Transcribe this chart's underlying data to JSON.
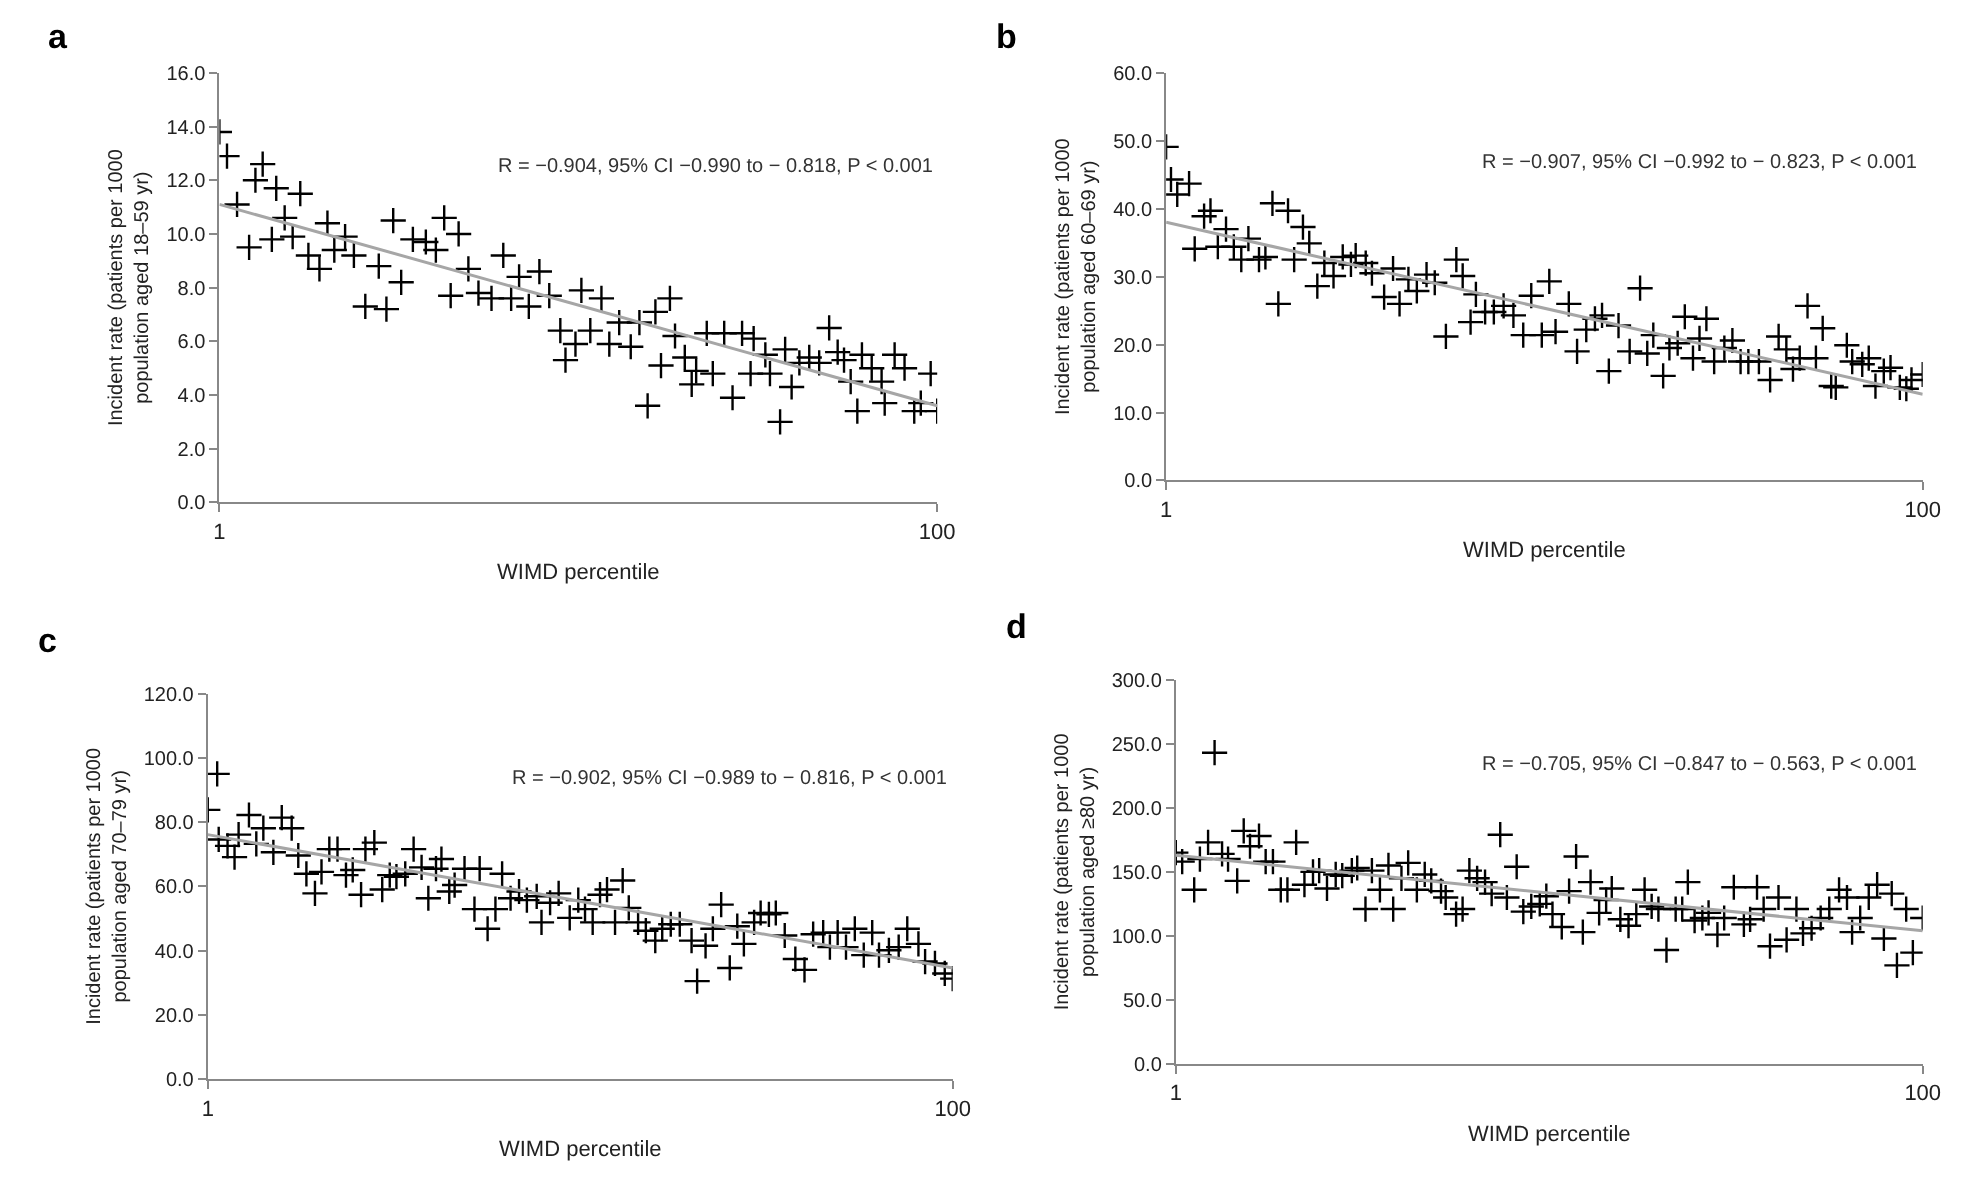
{
  "chart_data": [
    {
      "type": "scatter",
      "title": "a",
      "xlabel": "WIMD percentile",
      "ylabel": "Incident rate (patients per 1000\npopulation aged 18–59 yr)",
      "log": "x",
      "xlim": [
        1,
        100
      ],
      "xticks": [
        1,
        100
      ],
      "ylim": [
        0,
        16
      ],
      "yticks": [
        {
          "value": 0,
          "label": "0.0"
        },
        {
          "value": 2,
          "label": "2.0"
        },
        {
          "value": 4,
          "label": "4.0"
        },
        {
          "value": 6,
          "label": "6.0"
        },
        {
          "value": 8,
          "label": "8.0"
        },
        {
          "value": 10,
          "label": "10.0"
        },
        {
          "value": 12,
          "label": "12.0"
        },
        {
          "value": 14,
          "label": "14.0"
        },
        {
          "value": 16,
          "label": "16.0"
        }
      ],
      "annotations": [
        "R = −0.904, 95% CI −0.990 to − 0.818, P < 0.001"
      ],
      "series": [
        {
          "color": "#000000",
          "marker": "cross",
          "x": [
            1.0,
            1.05,
            1.12,
            1.21,
            1.26,
            1.32,
            1.4,
            1.44,
            1.52,
            1.6,
            1.68,
            1.77,
            1.9,
            2.0,
            2.09,
            2.24,
            2.37,
            2.55,
            2.78,
            2.92,
            3.05,
            3.21,
            3.46,
            3.76,
            4.01,
            4.23,
            4.41,
            4.64,
            4.94,
            5.27,
            5.73,
            6.18,
            6.5,
            6.84,
            7.28,
            7.79,
            8.3,
            8.91,
            9.21,
            9.82,
            10.2,
            10.8,
            11.6,
            12.2,
            13.0,
            14.0,
            14.8,
            15.6,
            16.4,
            17.0,
            18.0,
            18.6,
            19.8,
            20.7,
            21.3,
            22.8,
            23.7,
            25.5,
            26.9,
            28.6,
            30.2,
            30.8,
            33.2,
            34.2,
            36.5,
            37.7,
            39.3,
            41.3,
            44.0,
            46.9,
            50.0,
            52.8,
            55.0,
            57.4,
            59.9,
            61.7,
            65.7,
            70.0,
            71.4,
            76.1,
            81.1,
            86.3,
            90.0,
            95.9,
            100
          ],
          "values": [
            13.8,
            12.9,
            11.1,
            9.5,
            12.0,
            12.6,
            9.8,
            11.7,
            10.6,
            9.9,
            11.5,
            9.2,
            8.7,
            10.4,
            9.4,
            9.9,
            9.2,
            7.3,
            8.8,
            7.2,
            10.5,
            8.2,
            9.8,
            9.7,
            9.4,
            10.6,
            7.7,
            10.0,
            8.7,
            7.8,
            7.6,
            9.2,
            7.6,
            8.4,
            7.3,
            8.6,
            7.7,
            6.4,
            5.3,
            5.9,
            7.9,
            6.4,
            7.6,
            5.9,
            6.7,
            5.8,
            6.7,
            3.6,
            7.1,
            5.1,
            7.6,
            6.2,
            5.4,
            4.4,
            4.9,
            6.3,
            4.8,
            6.3,
            3.9,
            6.3,
            4.8,
            6.1,
            5.5,
            4.8,
            3.0,
            5.7,
            4.3,
            5.2,
            5.4,
            5.2,
            6.5,
            5.6,
            5.3,
            4.5,
            3.4,
            5.5,
            5.0,
            4.5,
            3.7,
            5.5,
            5.0,
            3.4,
            3.7,
            4.8,
            3.4
          ]
        },
        {
          "type": "line",
          "color": "#a6a6a6",
          "marker": "none",
          "x": [
            1,
            100
          ],
          "values": [
            11.1,
            3.6
          ]
        }
      ]
    },
    {
      "type": "scatter",
      "title": "b",
      "xlabel": "WIMD percentile",
      "ylabel": "Incident rate (patients per 1000\npopulation aged 60–69 yr)",
      "log": "x",
      "xlim": [
        1,
        100
      ],
      "xticks": [
        1,
        100
      ],
      "ylim": [
        0,
        60
      ],
      "yticks": [
        {
          "value": 0,
          "label": "0.0"
        },
        {
          "value": 10,
          "label": "10.0"
        },
        {
          "value": 20,
          "label": "20.0"
        },
        {
          "value": 30,
          "label": "30.0"
        },
        {
          "value": 40,
          "label": "40.0"
        },
        {
          "value": 50,
          "label": "50.0"
        },
        {
          "value": 60,
          "label": "60.0"
        }
      ],
      "annotations": [
        "R = −0.907, 95% CI −0.992 to − 0.823, P < 0.001"
      ],
      "series": [
        {
          "color": "#000000",
          "marker": "cross",
          "x": [
            1.0,
            1.03,
            1.07,
            1.15,
            1.19,
            1.26,
            1.31,
            1.37,
            1.44,
            1.51,
            1.58,
            1.65,
            1.76,
            1.83,
            1.91,
            1.98,
            2.1,
            2.18,
            2.3,
            2.39,
            2.51,
            2.62,
            2.77,
            2.93,
            3.08,
            3.17,
            3.37,
            3.5,
            3.77,
            3.98,
            4.14,
            4.37,
            4.6,
            4.88,
            5.13,
            5.49,
            5.85,
            6.08,
            6.38,
            6.59,
            6.97,
            7.35,
            7.8,
            8.28,
            8.79,
            9.23,
            9.84,
            10.3,
            10.7,
            11.6,
            12.2,
            12.9,
            13.6,
            14.2,
            14.8,
            15.7,
            16.8,
            17.9,
            18.7,
            19.4,
            20.6,
            21.4,
            22.5,
            23.5,
            24.7,
            25.7,
            26.8,
            28.1,
            29.9,
            31.4,
            33.0,
            34.6,
            36.9,
            39.5,
            41.6,
            43.6,
            45.4,
            47.3,
            49.6,
            52.2,
            54.4,
            57.3,
            58.9,
            63.0,
            65.1,
            69.2,
            72.0,
            75.0,
            78.9,
            82.2,
            87.0,
            90.5,
            93.4,
            100
          ],
          "values": [
            49.1,
            44.3,
            42.1,
            43.7,
            34.1,
            38.9,
            39.7,
            34.4,
            37.0,
            34.4,
            32.5,
            35.6,
            32.5,
            32.9,
            40.8,
            26.0,
            39.7,
            32.5,
            37.3,
            34.9,
            28.6,
            32.0,
            30.1,
            32.9,
            31.8,
            33.1,
            32.0,
            30.5,
            27.0,
            31.2,
            26.0,
            29.6,
            27.9,
            30.3,
            29.1,
            21.2,
            32.5,
            30.1,
            23.3,
            27.4,
            24.8,
            24.8,
            25.7,
            24.3,
            21.4,
            27.2,
            21.4,
            29.3,
            21.9,
            26.0,
            19.0,
            22.2,
            23.8,
            24.3,
            16.1,
            22.8,
            19.0,
            28.3,
            18.7,
            21.4,
            15.4,
            19.5,
            20.2,
            24.1,
            18.0,
            20.9,
            23.8,
            17.5,
            19.5,
            20.6,
            17.5,
            17.5,
            17.5,
            14.8,
            21.2,
            19.3,
            16.4,
            18.0,
            25.7,
            18.0,
            22.4,
            13.9,
            13.7,
            19.9,
            17.5,
            17.1,
            18.0,
            13.9,
            16.1,
            16.6,
            13.7,
            13.5,
            14.8,
            15.6
          ]
        },
        {
          "type": "line",
          "color": "#a6a6a6",
          "marker": "none",
          "x": [
            1,
            100
          ],
          "values": [
            38.0,
            12.7
          ]
        }
      ]
    },
    {
      "type": "scatter",
      "title": "c",
      "xlabel": "WIMD percentile",
      "ylabel": "Incident rate (patients per 1000\npopulation aged 70–79 yr)",
      "log": "x",
      "xlim": [
        1,
        100
      ],
      "xticks": [
        1,
        100
      ],
      "ylim": [
        0,
        120
      ],
      "yticks": [
        {
          "value": 0,
          "label": "0.0"
        },
        {
          "value": 20,
          "label": "20.0"
        },
        {
          "value": 40,
          "label": "40.0"
        },
        {
          "value": 60,
          "label": "60.0"
        },
        {
          "value": 80,
          "label": "80.0"
        },
        {
          "value": 100,
          "label": "100.0"
        },
        {
          "value": 120,
          "label": "120.0"
        }
      ],
      "annotations": [
        "R = −0.902, 95% CI −0.989 to − 0.816, P < 0.001"
      ],
      "series": [
        {
          "color": "#000000",
          "marker": "cross",
          "x": [
            1.0,
            1.06,
            1.07,
            1.13,
            1.18,
            1.21,
            1.29,
            1.35,
            1.41,
            1.5,
            1.58,
            1.68,
            1.75,
            1.84,
            1.94,
            2.02,
            2.12,
            2.23,
            2.35,
            2.45,
            2.58,
            2.65,
            2.8,
            2.94,
            3.08,
            3.21,
            3.39,
            3.57,
            3.75,
            3.91,
            4.1,
            4.24,
            4.45,
            4.6,
            4.89,
            5.2,
            5.37,
            5.64,
            5.92,
            6.17,
            6.5,
            6.85,
            7.19,
            7.64,
            7.87,
            8.3,
            8.75,
            9.37,
            9.88,
            10.3,
            10.8,
            11.3,
            11.8,
            12.4,
            13.0,
            13.5,
            14.3,
            15.0,
            15.9,
            16.6,
            17.5,
            18.5,
            19.9,
            20.6,
            21.7,
            22.7,
            23.9,
            25.2,
            26.4,
            27.5,
            29.3,
            30.5,
            32.1,
            33.5,
            35.4,
            37.8,
            40.0,
            42.2,
            44.9,
            46.8,
            49.1,
            51.7,
            54.6,
            57.7,
            60.8,
            63.4,
            67.4,
            71.6,
            75.5,
            80.9,
            84.3,
            89.6,
            95.2,
            100
          ],
          "values": [
            83.8,
            95.0,
            74.6,
            72.6,
            69.1,
            76.1,
            82.2,
            73.2,
            78.1,
            70.6,
            81.4,
            78.1,
            69.6,
            63.9,
            57.8,
            64.5,
            71.6,
            71.6,
            63.5,
            65.1,
            57.4,
            71.6,
            73.6,
            59.0,
            63.5,
            63.0,
            63.9,
            71.6,
            65.9,
            56.3,
            65.5,
            68.5,
            58.4,
            60.4,
            65.5,
            52.9,
            65.5,
            46.8,
            52.9,
            63.9,
            56.3,
            58.4,
            55.7,
            56.9,
            48.8,
            54.9,
            57.8,
            50.2,
            55.7,
            52.9,
            48.8,
            57.4,
            59.0,
            48.8,
            61.8,
            53.3,
            48.8,
            46.2,
            43.1,
            46.8,
            48.2,
            48.2,
            43.1,
            30.5,
            41.5,
            46.8,
            54.3,
            34.6,
            47.6,
            42.1,
            48.8,
            51.7,
            51.3,
            51.7,
            44.7,
            37.4,
            34.0,
            45.1,
            45.6,
            41.1,
            45.6,
            41.1,
            46.8,
            38.6,
            45.6,
            38.6,
            40.1,
            41.1,
            46.8,
            42.1,
            36.6,
            36.0,
            32.9,
            31.3
          ]
        },
        {
          "type": "line",
          "color": "#a6a6a6",
          "marker": "none",
          "x": [
            1,
            100
          ],
          "values": [
            76.1,
            34.6
          ]
        }
      ]
    },
    {
      "type": "scatter",
      "title": "d",
      "xlabel": "WIMD percentile",
      "ylabel": "Incident rate (patients per 1000\npopulation aged ≥80 yr)",
      "log": "x",
      "xlim": [
        1,
        100
      ],
      "xticks": [
        1,
        100
      ],
      "ylim": [
        0,
        300
      ],
      "yticks": [
        {
          "value": 0,
          "label": "0.0"
        },
        {
          "value": 50,
          "label": "50.0"
        },
        {
          "value": 100,
          "label": "100.0"
        },
        {
          "value": 150,
          "label": "150.0"
        },
        {
          "value": 200,
          "label": "200.0"
        },
        {
          "value": 250,
          "label": "250.0"
        },
        {
          "value": 300,
          "label": "300.0"
        }
      ],
      "annotations": [
        "R = −0.705, 95% CI −0.847 to − 0.563, P < 0.001"
      ],
      "series": [
        {
          "color": "#000000",
          "marker": "cross",
          "x": [
            1.0,
            1.04,
            1.12,
            1.16,
            1.22,
            1.27,
            1.33,
            1.38,
            1.46,
            1.52,
            1.58,
            1.67,
            1.74,
            1.82,
            1.91,
            1.99,
            2.1,
            2.21,
            2.33,
            2.42,
            2.54,
            2.68,
            2.79,
            2.96,
            3.06,
            3.22,
            3.35,
            3.52,
            3.71,
            3.82,
            4.02,
            4.19,
            4.42,
            4.64,
            4.83,
            5.13,
            5.28,
            5.63,
            5.86,
            6.11,
            6.41,
            6.73,
            7.01,
            7.39,
            7.7,
            8.18,
            8.52,
            8.95,
            9.43,
            9.82,
            10.2,
            10.8,
            11.3,
            11.8,
            12.3,
            12.9,
            13.6,
            14.2,
            14.7,
            15.5,
            16.3,
            17.1,
            18.0,
            18.8,
            19.6,
            20.6,
            21.8,
            22.7,
            23.5,
            24.5,
            25.7,
            26.7,
            28.2,
            29.4,
            31.2,
            33.2,
            34.5,
            36.0,
            37.5,
            39.0,
            41.1,
            43.2,
            45.9,
            47.8,
            50.4,
            53.3,
            56.2,
            59.7,
            62.7,
            64.7,
            68.0,
            71.7,
            75.5,
            78.7,
            82.6,
            85.3,
            90.3,
            94.1,
            100
          ],
          "values": [
            165,
            158,
            136,
            160,
            173,
            243,
            164,
            160,
            143,
            182,
            170,
            178,
            158,
            158,
            136,
            136,
            173,
            140,
            150,
            151,
            137,
            148,
            147,
            151,
            153,
            121,
            151,
            136,
            155,
            121,
            145,
            157,
            136,
            148,
            143,
            135,
            130,
            117,
            121,
            151,
            145,
            142,
            133,
            179,
            130,
            154,
            119,
            123,
            125,
            131,
            117,
            107,
            135,
            162,
            103,
            142,
            118,
            128,
            137,
            113,
            108,
            117,
            136,
            123,
            121,
            89,
            121,
            121,
            142,
            112,
            114,
            118,
            101,
            114,
            138,
            109,
            113,
            138,
            121,
            92,
            130,
            97,
            121,
            102,
            106,
            114,
            121,
            136,
            130,
            103,
            114,
            130,
            140,
            98,
            133,
            77,
            121,
            87,
            114
          ]
        },
        {
          "type": "line",
          "color": "#a6a6a6",
          "marker": "none",
          "x": [
            1,
            100
          ],
          "values": [
            163,
            104
          ]
        }
      ]
    }
  ]
}
